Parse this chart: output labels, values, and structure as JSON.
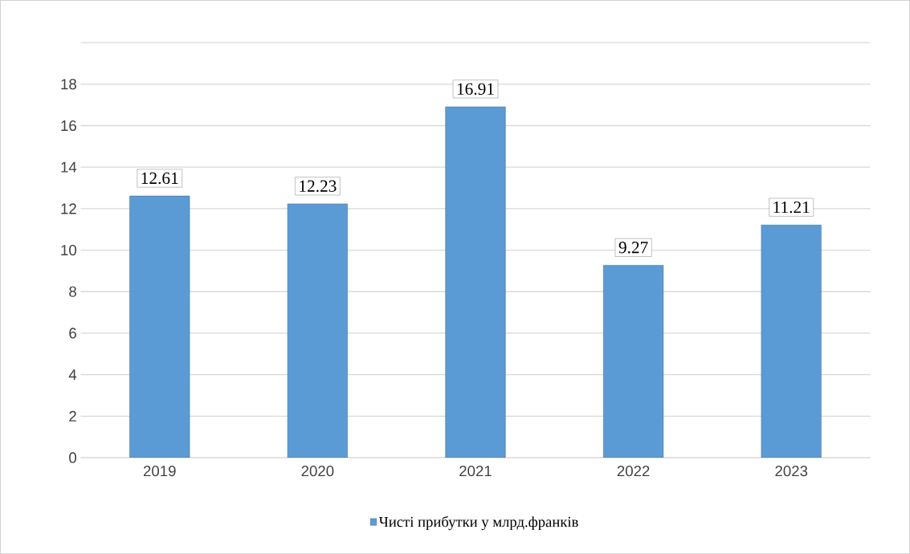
{
  "chart_data": {
    "type": "bar",
    "categories": [
      "2019",
      "2020",
      "2021",
      "2022",
      "2023"
    ],
    "series": [
      {
        "name": "Чисті прибутки у млрд.франків",
        "color": "#5b9bd5",
        "values": [
          12.61,
          12.23,
          16.91,
          9.27,
          11.21
        ],
        "value_labels": [
          "12.61",
          "12.23",
          "16.91",
          "9.27",
          "11.21"
        ]
      }
    ],
    "ylim": [
      0,
      20
    ],
    "yticks": [
      0,
      2,
      4,
      6,
      8,
      10,
      12,
      14,
      16,
      18,
      {
        "value": 20,
        "label": null
      }
    ],
    "grid": "y",
    "legend": "bottom"
  }
}
